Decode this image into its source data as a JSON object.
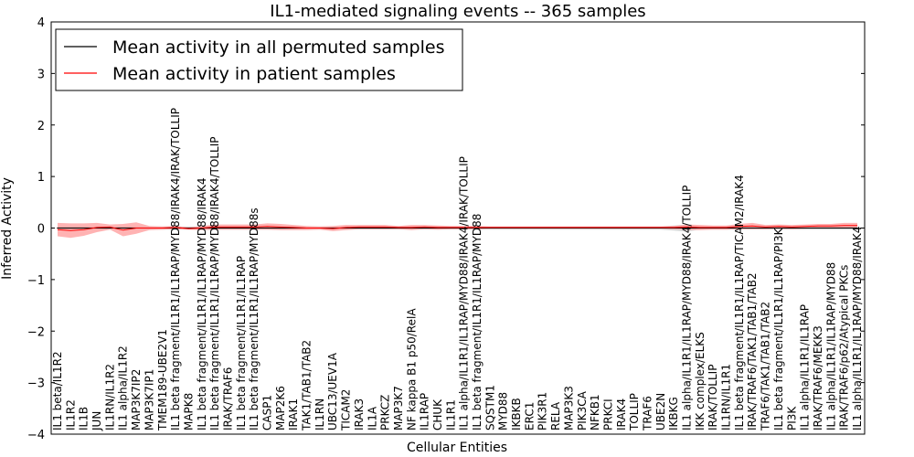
{
  "chart_data": {
    "type": "line",
    "title": "IL1-mediated signaling events -- 365 samples",
    "xlabel": "Cellular Entities",
    "ylabel": "Inferred Activity",
    "ylim": [
      -4,
      4
    ],
    "yticks": [
      "−4",
      "−3",
      "−2",
      "−1",
      "0",
      "1",
      "2",
      "3",
      "4"
    ],
    "legend": {
      "placement": "top-left",
      "entries": [
        {
          "label": "Mean activity in all permuted samples",
          "color": "#000000"
        },
        {
          "label": "Mean activity in patient samples",
          "color": "#ff0000"
        }
      ]
    },
    "colors": {
      "patient": "#ff0000",
      "patient_band": "#ff9a9a",
      "permuted": "#000000",
      "permuted_band": "#cccccc"
    },
    "categories": [
      "IL1 beta/IL1R2",
      "IL1R2",
      "IL1B",
      "JUN",
      "IL1RN/IL1R2",
      "IL1 alpha/IL1R2",
      "MAP3K7IP2",
      "MAP3K7IP1",
      "TMEM189-UBE2V1",
      "IL1 beta fragment/IL1R1/IL1RAP/MYD88/IRAK4/IRAK/TOLLIP",
      "MAPK8",
      "IL1 beta fragment/IL1R1/IL1RAP/MYD88/IRAK4",
      "IL1 beta fragment/IL1R1/IL1RAP/MYD88/IRAK4/TOLLIP",
      "IRAK/TRAF6",
      "IL1 beta fragment/IL1R1/IL1RAP",
      "IL1 beta fragment/IL1R1/IL1RAP/MYD88s",
      "CASP1",
      "MAP2K6",
      "IRAK1",
      "TAK1/TAB1/TAB2",
      "IL1RN",
      "UBC13/UEV1A",
      "TICAM2",
      "IRAK3",
      "IL1A",
      "PRKCZ",
      "MAP3K7",
      "NF kappa B1 p50/RelA",
      "IL1RAP",
      "CHUK",
      "IL1R1",
      "IL1 alpha/IL1R1/IL1RAP/MYD88/IRAK4/IRAK/TOLLIP",
      "IL1 beta fragment/IL1R1/IL1RAP/MYD88",
      "SQSTM1",
      "MYD88",
      "IKBKB",
      "ERC1",
      "PIK3R1",
      "RELA",
      "MAP3K3",
      "PIK3CA",
      "NFKB1",
      "PRKCI",
      "IRAK4",
      "TOLLIP",
      "TRAF6",
      "UBE2N",
      "IKBKG",
      "IL1 alpha/IL1R1/IL1RAP/MYD88/IRAK4/TOLLIP",
      "IKK complex/ELKS",
      "IRAK/TOLLIP",
      "IL1RN/IL1R1",
      "IL1 beta fragment/IL1R1/IL1RAP/TICAM2/IRAK4",
      "IRAK/TRAF6/TAK1/TAB1/TAB2",
      "TRAF6/TAK1/TAB1/TAB2",
      "IL1 beta fragment/IL1R1/IL1RAP/PI3K",
      "PI3K",
      "IL1 alpha/IL1R1/IL1RAP",
      "IRAK/TRAF6/MEKK3",
      "IL1 alpha/IL1R1/IL1RAP/MYD88",
      "IRAK/TRAF6/p62/Atypical PKCs",
      "IL1 alpha/IL1R1/IL1RAP/MYD88/IRAK4"
    ],
    "series": [
      {
        "name": "Mean activity in patient samples",
        "values": [
          -0.03,
          -0.05,
          -0.03,
          0.01,
          0.02,
          -0.04,
          0.0,
          0.0,
          0.0,
          0.01,
          -0.01,
          0.0,
          0.02,
          0.02,
          0.02,
          0.02,
          0.03,
          0.02,
          0.01,
          0.0,
          0.0,
          -0.01,
          0.01,
          0.02,
          0.02,
          0.02,
          0.01,
          0.01,
          0.02,
          0.01,
          0.01,
          0.01,
          0.01,
          0.01,
          0.01,
          0.01,
          0.01,
          0.01,
          0.01,
          0.01,
          0.01,
          0.01,
          0.01,
          0.01,
          0.01,
          0.01,
          0.01,
          0.01,
          0.02,
          0.01,
          0.01,
          0.01,
          0.03,
          0.04,
          0.02,
          0.03,
          0.02,
          0.03,
          0.04,
          0.04,
          0.05,
          0.05
        ],
        "spread": [
          0.13,
          0.14,
          0.12,
          0.09,
          0.05,
          0.12,
          0.11,
          0.04,
          0.03,
          0.03,
          0.02,
          0.04,
          0.05,
          0.05,
          0.05,
          0.05,
          0.06,
          0.06,
          0.05,
          0.04,
          0.03,
          0.05,
          0.05,
          0.04,
          0.04,
          0.04,
          0.03,
          0.05,
          0.04,
          0.04,
          0.03,
          0.03,
          0.03,
          0.02,
          0.02,
          0.02,
          0.02,
          0.02,
          0.02,
          0.02,
          0.02,
          0.02,
          0.02,
          0.02,
          0.02,
          0.02,
          0.02,
          0.03,
          0.05,
          0.05,
          0.04,
          0.04,
          0.05,
          0.06,
          0.04,
          0.04,
          0.04,
          0.04,
          0.04,
          0.04,
          0.05,
          0.05
        ]
      },
      {
        "name": "Mean activity in all permuted samples",
        "values": [
          0.0,
          0.0,
          0.0,
          0.0,
          0.0,
          0.0,
          0.0,
          0.0,
          0.0,
          0.0,
          0.0,
          0.0,
          0.0,
          0.0,
          0.0,
          0.0,
          0.0,
          0.0,
          0.0,
          0.0,
          0.0,
          0.0,
          0.0,
          0.0,
          0.0,
          0.0,
          0.0,
          0.0,
          0.0,
          0.0,
          0.0,
          0.0,
          0.0,
          0.0,
          0.0,
          0.0,
          0.0,
          0.0,
          0.0,
          0.0,
          0.0,
          0.0,
          0.0,
          0.0,
          0.0,
          0.0,
          0.0,
          0.0,
          0.0,
          0.0,
          0.0,
          0.0,
          0.0,
          0.0,
          0.0,
          0.0,
          0.0,
          0.0,
          0.0,
          0.0,
          0.0,
          0.0
        ],
        "spread": [
          0.03,
          0.03,
          0.03,
          0.03,
          0.03,
          0.03,
          0.03,
          0.03,
          0.03,
          0.03,
          0.03,
          0.03,
          0.03,
          0.03,
          0.03,
          0.03,
          0.03,
          0.03,
          0.03,
          0.03,
          0.03,
          0.03,
          0.03,
          0.03,
          0.03,
          0.03,
          0.03,
          0.03,
          0.03,
          0.03,
          0.03,
          0.03,
          0.03,
          0.03,
          0.03,
          0.03,
          0.03,
          0.03,
          0.03,
          0.03,
          0.03,
          0.03,
          0.03,
          0.03,
          0.03,
          0.03,
          0.03,
          0.05,
          0.07,
          0.03,
          0.03,
          0.03,
          0.03,
          0.03,
          0.03,
          0.03,
          0.03,
          0.03,
          0.03,
          0.03,
          0.03,
          0.03
        ]
      }
    ]
  }
}
